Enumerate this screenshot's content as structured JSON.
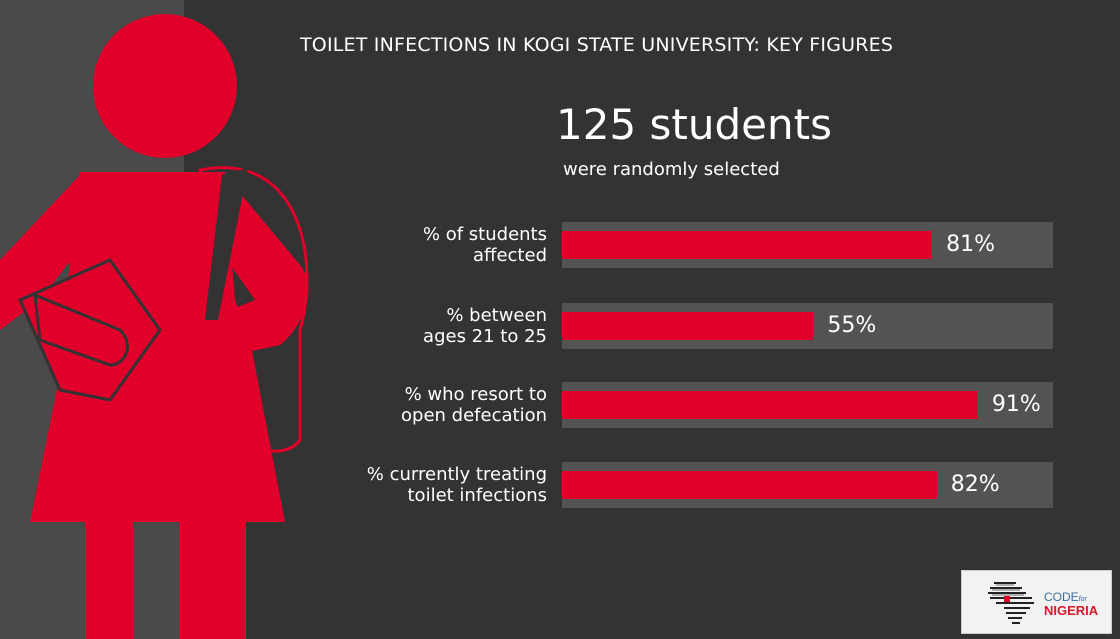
{
  "title": "TOILET INFECTIONS IN KOGI STATE UNIVERSITY: KEY FIGURES",
  "headline": "125 students",
  "subheadline": "were randomly selected",
  "colors": {
    "accent": "#e1002a",
    "background": "#333333",
    "track": "#535353",
    "strip": "#4a4a4a"
  },
  "chart_data": {
    "type": "bar",
    "orientation": "horizontal",
    "categories": [
      "% of students affected",
      "%  between ages 21 to 25",
      "%  who resort to open defecation",
      "% currently treating toilet infections"
    ],
    "label_lines": [
      [
        "% of students",
        "affected"
      ],
      [
        "%  between",
        "ages 21 to 25"
      ],
      [
        "%  who resort to",
        "open defecation"
      ],
      [
        "% currently treating",
        "toilet infections"
      ]
    ],
    "values": [
      81,
      55,
      91,
      82
    ],
    "data_labels": [
      "81%",
      "55%",
      "91%",
      "82%"
    ],
    "xlim": [
      0,
      100
    ]
  },
  "logo": {
    "line1": "CODE",
    "for": "for",
    "line2": "NIGERIA"
  }
}
